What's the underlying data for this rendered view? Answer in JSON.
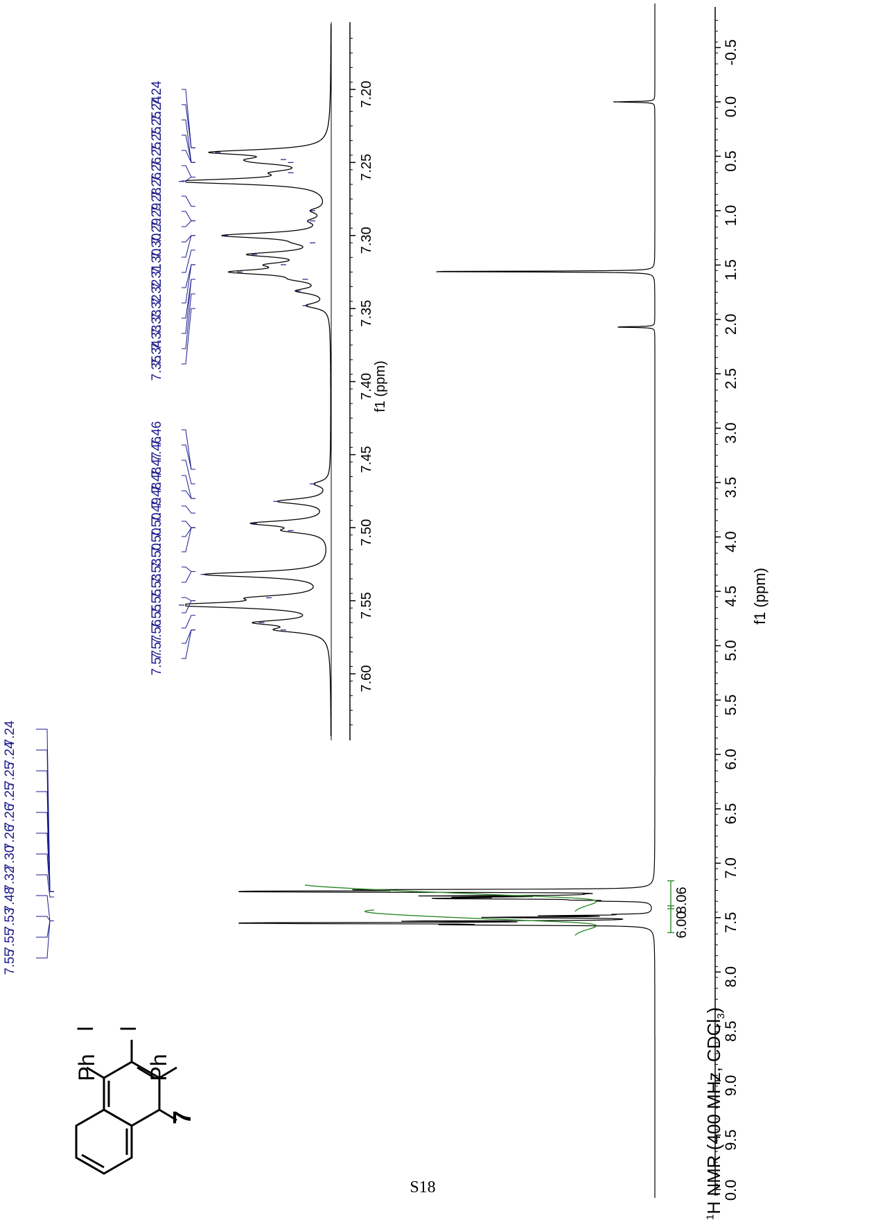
{
  "page": {
    "number": "S18"
  },
  "compound": {
    "label": "7",
    "substituent_label": "Ph",
    "halogen_label": "I"
  },
  "spectrum_title": {
    "prefix": "1",
    "main": "H NMR (400 MHz, CDCl",
    "sub": "3",
    "suffix": ")"
  },
  "colors": {
    "spectrum": "#000000",
    "peak_labels": "#1a1a8c",
    "integral": "#2a8a2a"
  },
  "chart_data": [
    {
      "type": "line",
      "title": "1H NMR (400 MHz, CDCl3)",
      "xlabel": "f1 (ppm)",
      "ylabel": "",
      "xlim": [
        10.3,
        -0.8
      ],
      "ticks": [
        "-0.5",
        "0.0",
        "0.5",
        "1.0",
        "1.5",
        "2.0",
        "2.5",
        "3.0",
        "3.5",
        "4.0",
        "4.5",
        "5.0",
        "5.5",
        "6.0",
        "6.5",
        "7.0",
        "7.5",
        "8.0",
        "8.5",
        "9.0",
        "9.5",
        "10.0"
      ],
      "peaks": [
        {
          "ppm": 7.26,
          "height": 1.0
        },
        {
          "ppm": 7.55,
          "height": 0.95
        },
        {
          "ppm": 0.0,
          "height": 0.1
        },
        {
          "ppm": 1.56,
          "height": 0.6
        },
        {
          "ppm": 2.07,
          "height": 0.1
        }
      ],
      "peak_labels": [
        "7.24",
        "7.24",
        "7.25",
        "7.25",
        "7.26",
        "7.26",
        "7.30",
        "7.32",
        "7.48",
        "7.53",
        "7.55",
        "7.55"
      ],
      "integrals": [
        {
          "range": [
            7.2,
            7.38
          ],
          "value": "8.06"
        },
        {
          "range": [
            7.43,
            7.6
          ],
          "value": "6.00"
        }
      ]
    },
    {
      "type": "line",
      "title": "",
      "xlabel": "f1 (ppm)",
      "ylabel": "",
      "xlim": [
        7.64,
        7.16
      ],
      "ticks": [
        "7.20",
        "7.25",
        "7.30",
        "7.35",
        "7.40",
        "7.45",
        "7.50",
        "7.55",
        "7.60"
      ],
      "peaks": [
        {
          "ppm": 7.243,
          "height": 0.75
        },
        {
          "ppm": 7.248,
          "height": 0.3
        },
        {
          "ppm": 7.25,
          "height": 0.25
        },
        {
          "ppm": 7.257,
          "height": 0.25
        },
        {
          "ppm": 7.263,
          "height": 1.0
        },
        {
          "ppm": 7.283,
          "height": 0.1
        },
        {
          "ppm": 7.29,
          "height": 0.1
        },
        {
          "ppm": 7.3,
          "height": 0.7
        },
        {
          "ppm": 7.305,
          "height": 0.1
        },
        {
          "ppm": 7.313,
          "height": 0.5
        },
        {
          "ppm": 7.32,
          "height": 0.3
        },
        {
          "ppm": 7.325,
          "height": 0.6
        },
        {
          "ppm": 7.33,
          "height": 0.15
        },
        {
          "ppm": 7.338,
          "height": 0.2
        },
        {
          "ppm": 7.348,
          "height": 0.15
        },
        {
          "ppm": 7.47,
          "height": 0.1
        },
        {
          "ppm": 7.482,
          "height": 0.35
        },
        {
          "ppm": 7.497,
          "height": 0.5
        },
        {
          "ppm": 7.502,
          "height": 0.25
        },
        {
          "ppm": 7.532,
          "height": 0.85
        },
        {
          "ppm": 7.548,
          "height": 0.4
        },
        {
          "ppm": 7.553,
          "height": 1.0
        },
        {
          "ppm": 7.565,
          "height": 0.45
        },
        {
          "ppm": 7.57,
          "height": 0.3
        }
      ],
      "peak_labels": [
        "7.24",
        "7.24",
        "7.25",
        "7.25",
        "7.25",
        "7.26",
        "7.26",
        "7.28",
        "7.29",
        "7.29",
        "7.30",
        "7.30",
        "7.31",
        "7.32",
        "7.32",
        "7.33",
        "7.33",
        "7.34",
        "7.35",
        "7.46",
        "7.46",
        "7.47",
        "7.48",
        "7.48",
        "7.49",
        "7.50",
        "7.50",
        "7.50",
        "7.53",
        "7.53",
        "7.55",
        "7.55",
        "7.56",
        "7.57",
        "7.57"
      ]
    }
  ]
}
